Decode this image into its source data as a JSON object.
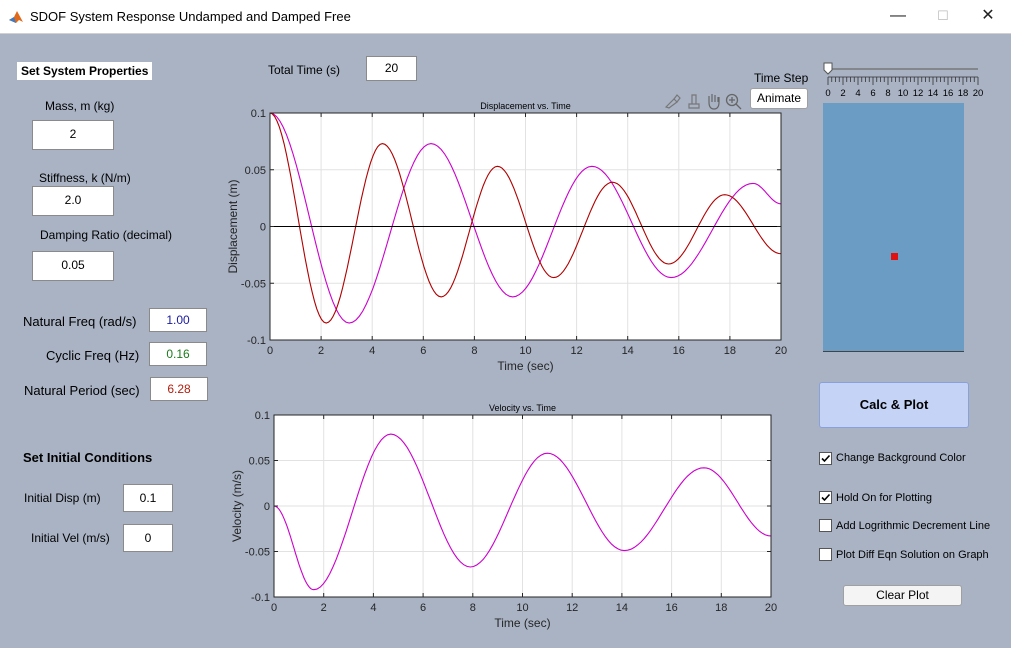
{
  "window": {
    "title": "SDOF System Response Undamped and Damped Free",
    "minimize": "—",
    "maximize": "☐",
    "close": "✕"
  },
  "properties": {
    "header": "Set System Properties",
    "mass_label": "Mass, m (kg)",
    "mass_value": "2",
    "stiffness_label": "Stiffness, k (N/m)",
    "stiffness_value": "2.0",
    "damping_label": "Damping Ratio (decimal)",
    "damping_value": "0.05"
  },
  "results": {
    "natural_freq_label": "Natural Freq (rad/s)",
    "natural_freq_value": "1.00",
    "natural_freq_color": "#1a1aa0",
    "cyclic_freq_label": "Cyclic Freq (Hz)",
    "cyclic_freq_value": "0.16",
    "cyclic_freq_color": "#1e7a1e",
    "natural_period_label": "Natural Period (sec)",
    "natural_period_value": "6.28",
    "natural_period_color": "#b02010"
  },
  "initial": {
    "header": "Set Initial Conditions",
    "disp_label": "Initial Disp (m)",
    "disp_value": "0.1",
    "vel_label": "Initial Vel (m/s)",
    "vel_value": "0"
  },
  "total_time": {
    "label": "Total Time (s)",
    "value": "20"
  },
  "time_step": {
    "label": "Time Step",
    "ticks": [
      "0",
      "2",
      "4",
      "6",
      "8",
      "10",
      "12",
      "14",
      "16",
      "18",
      "20"
    ],
    "value": 0
  },
  "animate_button": "Animate",
  "calc_button": "Calc & Plot",
  "clear_button": "Clear Plot",
  "checkboxes": [
    {
      "label": "Change Background Color",
      "checked": true
    },
    {
      "label": "Hold On for Plotting",
      "checked": true
    },
    {
      "label": "Add Logrithmic Decrement Line",
      "checked": false
    },
    {
      "label": "Plot Diff Eqn Solution on Graph",
      "checked": false
    }
  ],
  "animation": {
    "panel_color": "#6a9cc4",
    "mass_color": "#e01010"
  },
  "axes_toolbar": [
    "brush-icon",
    "datatip-icon",
    "pan-icon",
    "zoom-in-icon"
  ],
  "chart_data": [
    {
      "type": "line",
      "title": "Displacement vs. Time",
      "xlabel": "Time (sec)",
      "ylabel": "Displacement (m)",
      "xlim": [
        0,
        20
      ],
      "ylim": [
        -0.1,
        0.1
      ],
      "xticks": [
        "0",
        "2",
        "4",
        "6",
        "8",
        "10",
        "12",
        "14",
        "16",
        "18",
        "20"
      ],
      "yticks": [
        "-0.1",
        "-0.05",
        "0",
        "0.05",
        "0.1"
      ],
      "grid": true,
      "series": [
        {
          "color": "#cc00cc",
          "x": [
            0,
            3.1,
            6.3,
            9.5,
            12.6,
            15.7,
            18.9,
            20
          ],
          "y": [
            0.1,
            -0.085,
            0.073,
            -0.062,
            0.053,
            -0.045,
            0.038,
            0.02
          ]
        },
        {
          "color": "#b00000",
          "x": [
            0,
            2.2,
            4.4,
            6.7,
            8.9,
            11.1,
            13.4,
            15.6,
            17.8,
            20
          ],
          "y": [
            0.1,
            -0.085,
            0.073,
            -0.062,
            0.053,
            -0.045,
            0.039,
            -0.033,
            0.028,
            -0.024
          ]
        },
        {
          "color": "#000000",
          "x": [
            0,
            20
          ],
          "y": [
            0,
            0
          ]
        }
      ]
    },
    {
      "type": "line",
      "title": "Velocity vs. Time",
      "xlabel": "Time (sec)",
      "ylabel": "Velocity (m/s)",
      "xlim": [
        0,
        20
      ],
      "ylim": [
        -0.1,
        0.1
      ],
      "xticks": [
        "0",
        "2",
        "4",
        "6",
        "8",
        "10",
        "12",
        "14",
        "16",
        "18",
        "20"
      ],
      "yticks": [
        "-0.1",
        "-0.05",
        "0",
        "0.05",
        "0.1"
      ],
      "grid": true,
      "series": [
        {
          "color": "#cc00cc",
          "x": [
            0,
            1.6,
            4.7,
            7.9,
            11.0,
            14.1,
            17.3,
            20
          ],
          "y": [
            0,
            -0.092,
            0.079,
            -0.067,
            0.058,
            -0.049,
            0.042,
            -0.033
          ]
        }
      ]
    }
  ]
}
